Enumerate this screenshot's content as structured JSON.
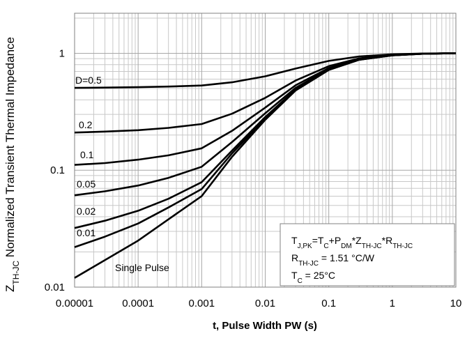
{
  "chart_data": {
    "type": "line",
    "log_x": true,
    "log_y": true,
    "grid": true,
    "minor_grid": true,
    "x_label": "t, Pulse Width PW (s)",
    "y_label": [
      {
        "text": "Z",
        "sub": false
      },
      {
        "text": "TH-JC",
        "sub": true
      },
      {
        "text": " Normalized Transient Thermal Impedance",
        "sub": false
      }
    ],
    "xlim": [
      1e-05,
      10
    ],
    "xticks": [
      1e-05,
      0.0001,
      0.001,
      0.01,
      0.1,
      1,
      10
    ],
    "ylim": [
      0.01,
      2.2
    ],
    "yticks": [
      0.01,
      0.1,
      1
    ],
    "x": [
      1e-05,
      3e-05,
      0.0001,
      0.0003,
      0.001,
      0.003,
      0.01,
      0.03,
      0.1,
      0.3,
      1,
      3,
      10
    ],
    "series": [
      {
        "name": "D=0.5",
        "color": "#000000",
        "values": [
          0.506,
          0.509,
          0.513,
          0.519,
          0.53,
          0.565,
          0.635,
          0.74,
          0.86,
          0.94,
          0.98,
          0.995,
          1.0
        ]
      },
      {
        "name": "0.2",
        "color": "#000000",
        "values": [
          0.21,
          0.214,
          0.22,
          0.23,
          0.248,
          0.304,
          0.416,
          0.584,
          0.776,
          0.904,
          0.968,
          0.992,
          1.0
        ]
      },
      {
        "name": "0.1",
        "color": "#000000",
        "values": [
          0.111,
          0.115,
          0.123,
          0.134,
          0.154,
          0.217,
          0.343,
          0.532,
          0.748,
          0.892,
          0.964,
          0.991,
          1.0
        ]
      },
      {
        "name": "0.05",
        "color": "#000000",
        "values": [
          0.061,
          0.066,
          0.074,
          0.086,
          0.107,
          0.174,
          0.307,
          0.506,
          0.734,
          0.886,
          0.962,
          0.991,
          1.0
        ]
      },
      {
        "name": "0.02",
        "color": "#000000",
        "values": [
          0.032,
          0.037,
          0.045,
          0.057,
          0.079,
          0.147,
          0.285,
          0.49,
          0.726,
          0.882,
          0.961,
          0.99,
          1.0
        ]
      },
      {
        "name": "0.01",
        "color": "#000000",
        "values": [
          0.022,
          0.027,
          0.035,
          0.048,
          0.069,
          0.139,
          0.277,
          0.485,
          0.723,
          0.881,
          0.96,
          0.99,
          1.0
        ]
      },
      {
        "name": "Single Pulse",
        "color": "#000000",
        "values": [
          0.012,
          0.017,
          0.025,
          0.038,
          0.06,
          0.13,
          0.27,
          0.48,
          0.72,
          0.88,
          0.96,
          0.99,
          1.0
        ]
      }
    ],
    "annotation": [
      [
        {
          "text": "T",
          "sub": false
        },
        {
          "text": "J,PK",
          "sub": true
        },
        {
          "text": "=T",
          "sub": false
        },
        {
          "text": "C",
          "sub": true
        },
        {
          "text": "+P",
          "sub": false
        },
        {
          "text": "DM",
          "sub": true
        },
        {
          "text": "*Z",
          "sub": false
        },
        {
          "text": "TH-JC",
          "sub": true
        },
        {
          "text": "*R",
          "sub": false
        },
        {
          "text": "TH-JC",
          "sub": true
        }
      ],
      [
        {
          "text": "R",
          "sub": false
        },
        {
          "text": "TH-JC",
          "sub": true
        },
        {
          "text": " = 1.51 °C/W",
          "sub": false
        }
      ],
      [
        {
          "text": "T",
          "sub": false
        },
        {
          "text": "C",
          "sub": true
        },
        {
          "text": " = 25°C",
          "sub": false
        }
      ]
    ]
  }
}
